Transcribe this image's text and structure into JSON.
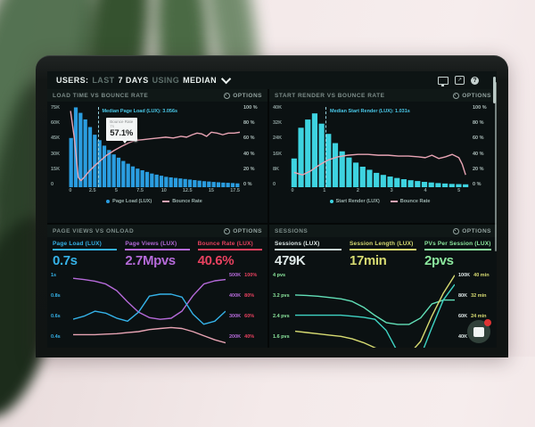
{
  "topbar": {
    "title_prefix": "USERS:",
    "range_label": "LAST",
    "range_value": "7 DAYS",
    "using_label": "USING",
    "agg_value": "MEDIAN",
    "icons": [
      "monitor-icon",
      "share-icon",
      "help-icon"
    ],
    "share_glyph": "↗",
    "help_glyph": "?"
  },
  "panels": {
    "load": {
      "title": "LOAD TIME VS BOUNCE RATE",
      "options_label": "OPTIONS",
      "median_label": "Median Page Load (LUX): 3.056s",
      "tooltip": {
        "title": "Bounce Rate",
        "x": "7s",
        "value": "57.1%"
      },
      "y_left": [
        "75K",
        "60K",
        "45K",
        "30K",
        "15K",
        "0"
      ],
      "y_right": [
        "100 %",
        "80 %",
        "60 %",
        "40 %",
        "20 %",
        "0 %"
      ],
      "x_ticks": [
        "0",
        "2.5",
        "5",
        "7.5",
        "10",
        "12.5",
        "15",
        "17.5"
      ],
      "legend": [
        "Page Load (LUX)",
        "Bounce Rate"
      ]
    },
    "render": {
      "title": "START RENDER VS BOUNCE RATE",
      "options_label": "OPTIONS",
      "median_label": "Median Start Render (LUX): 1.031s",
      "y_left": [
        "40K",
        "32K",
        "24K",
        "16K",
        "8K",
        "0"
      ],
      "y_right": [
        "100 %",
        "80 %",
        "60 %",
        "40 %",
        "20 %",
        "0 %"
      ],
      "x_ticks": [
        "0",
        "1",
        "2",
        "3",
        "4",
        "5"
      ],
      "legend": [
        "Start Render (LUX)",
        "Bounce Rate"
      ]
    },
    "pageviews": {
      "title": "PAGE VIEWS VS ONLOAD",
      "options_label": "OPTIONS",
      "metrics": [
        {
          "label": "Page Load (LUX)",
          "value": "0.7s",
          "color": "#35b2e8"
        },
        {
          "label": "Page Views (LUX)",
          "value": "2.7Mpvs",
          "color": "#b56ad9"
        },
        {
          "label": "Bounce Rate (LUX)",
          "value": "40.6%",
          "color": "#e8415f"
        }
      ],
      "y_left": [
        "1s",
        "0.8s",
        "0.6s",
        "0.4s"
      ],
      "y_right_k": [
        "500K",
        "400K",
        "300K",
        "200K"
      ],
      "y_right_pct": [
        "100%",
        "80%",
        "60%",
        "40%"
      ]
    },
    "sessions": {
      "title": "SESSIONS",
      "options_label": "OPTIONS",
      "metrics": [
        {
          "label": "Sessions (LUX)",
          "value": "479K",
          "color": "#dfe9e8"
        },
        {
          "label": "Session Length (LUX)",
          "value": "17min",
          "color": "#d8dc72"
        },
        {
          "label": "PVs Per Session (LUX)",
          "value": "2pvs",
          "color": "#8ce89e"
        }
      ],
      "y_left": [
        "4 pvs",
        "3.2 pvs",
        "2.4 pvs",
        "1.6 pvs"
      ],
      "y_right_k": [
        "100K",
        "80K",
        "60K",
        "40K"
      ],
      "y_right_min": [
        "40 min",
        "32 min",
        "24 min",
        ""
      ]
    }
  },
  "chart_data": [
    {
      "type": "bar",
      "title": "LOAD TIME VS BOUNCE RATE",
      "xlabel_unit": "seconds",
      "x_range": [
        0,
        18
      ],
      "bars": {
        "name": "Page Load (LUX)",
        "color": "#2a9de0",
        "unit": "K sessions",
        "max": 75,
        "bin_width": 0.5,
        "values": [
          45,
          73,
          68,
          62,
          55,
          48,
          43,
          38,
          34,
          30,
          27,
          24,
          21.5,
          19,
          17,
          15.5,
          14,
          12.5,
          11.5,
          10.5,
          9.5,
          9,
          8.5,
          8,
          7.5,
          7,
          6.5,
          6,
          5.5,
          5.2,
          4.8,
          4.5,
          4.2,
          4,
          3.8,
          3.5
        ]
      },
      "median": {
        "label": "Median Page Load (LUX): 3.056s",
        "value_s": 3.056
      },
      "lines": [
        {
          "name": "Bounce Rate",
          "color": "#e8a4b4",
          "unit": "%",
          "range": [
            0,
            100
          ],
          "x": [
            0.2,
            0.6,
            1.0,
            1.3,
            1.7,
            2.2,
            2.8,
            3.4,
            4.0,
            4.8,
            5.6,
            6.3,
            7.0,
            7.8,
            8.6,
            9.4,
            10.2,
            11.0,
            11.8,
            12.4,
            13.0,
            13.5,
            14.0,
            14.5,
            15.0,
            15.6,
            16.2,
            16.8,
            17.4,
            18.0
          ],
          "values": [
            93,
            60,
            12,
            8,
            13,
            20,
            27,
            33,
            39,
            45,
            50,
            54,
            57.1,
            58,
            59,
            60,
            61,
            60,
            62,
            61,
            64,
            66,
            65,
            62,
            67,
            66,
            64,
            66,
            66,
            67
          ]
        }
      ]
    },
    {
      "type": "bar",
      "title": "START RENDER VS BOUNCE RATE",
      "xlabel_unit": "seconds",
      "x_range": [
        0,
        5.3
      ],
      "bars": {
        "name": "Start Render (LUX)",
        "color": "#3ed3e0",
        "unit": "K sessions",
        "max": 40,
        "bin_width": 0.2,
        "values": [
          14,
          29,
          33,
          36,
          31,
          26,
          21.5,
          17.5,
          14.5,
          12,
          10,
          8.5,
          7,
          6,
          5.2,
          4.5,
          3.9,
          3.4,
          3,
          2.6,
          2.3,
          2,
          1.8,
          1.6,
          1.5,
          1.4
        ]
      },
      "median": {
        "label": "Median Start Render (LUX): 1.031s",
        "value_s": 1.031
      },
      "lines": [
        {
          "name": "Bounce Rate",
          "color": "#e8a4b4",
          "unit": "%",
          "range": [
            0,
            100
          ],
          "x": [
            0.1,
            0.35,
            0.6,
            0.85,
            1.1,
            1.4,
            1.7,
            2.0,
            2.3,
            2.6,
            2.9,
            3.2,
            3.5,
            3.8,
            4.0,
            4.2,
            4.4,
            4.6,
            4.8,
            5.0,
            5.1,
            5.2
          ],
          "values": [
            18,
            15,
            20,
            27,
            33,
            37,
            39,
            40,
            40,
            39,
            39,
            38,
            38,
            37,
            36,
            39,
            35,
            37,
            40,
            36,
            28,
            15
          ]
        }
      ]
    },
    {
      "type": "line",
      "title": "PAGE VIEWS VS ONLOAD",
      "lines": [
        {
          "name": "Page Views (LUX)",
          "color": "#b56ad9",
          "unit": "K",
          "range": [
            85,
            520
          ],
          "values": [
            480,
            474,
            466,
            452,
            420,
            365,
            315,
            288,
            280,
            285,
            320,
            395,
            452,
            468,
            474
          ]
        },
        {
          "name": "Page Load (LUX)",
          "color": "#35b2e8",
          "unit": "s",
          "range": [
            0.15,
            1.04
          ],
          "values": [
            0.55,
            0.58,
            0.63,
            0.61,
            0.56,
            0.53,
            0.62,
            0.78,
            0.8,
            0.8,
            0.77,
            0.6,
            0.5,
            0.53,
            0.63
          ]
        },
        {
          "name": "Bounce Rate (LUX)",
          "color": "#e8a4b4",
          "unit": "%",
          "range": [
            17,
            104
          ],
          "values": [
            41,
            41,
            41,
            41.5,
            42,
            43,
            44,
            46,
            47,
            48,
            47,
            44,
            40,
            36,
            33
          ]
        }
      ]
    },
    {
      "type": "line",
      "title": "SESSIONS",
      "lines": [
        {
          "name": "PVs Per Session (LUX)",
          "color": "#62e0b8",
          "unit": "pvs",
          "range": [
            0.69,
            4.17
          ],
          "values": [
            3.2,
            3.18,
            3.15,
            3.1,
            3.05,
            2.95,
            2.72,
            2.4,
            2.12,
            2.05,
            2.05,
            2.3,
            2.85,
            3.0,
            3.0
          ]
        },
        {
          "name": "Sessions (LUX)",
          "color": "#3fd4c4",
          "unit": "K",
          "range": [
            17,
            104
          ],
          "values": [
            60,
            60,
            60,
            60,
            60,
            59,
            58,
            56,
            45,
            24,
            12,
            20,
            48,
            75,
            90
          ]
        },
        {
          "name": "Session Length (LUX)",
          "color": "#d8dc72",
          "unit": "min",
          "range": [
            7,
            42
          ],
          "values": [
            18,
            17.5,
            17,
            16.5,
            16,
            15,
            13.5,
            11.5,
            9.5,
            8,
            9,
            14,
            24,
            33,
            40
          ]
        }
      ]
    }
  ],
  "colors": {
    "screen_bg": "#0a0e10",
    "panel_bg": "#0b1112",
    "bars_blue": "#2a9de0",
    "bars_cyan": "#3ed3e0",
    "bounce_pink": "#e8a4b4",
    "accent_cyan": "#35b2e8",
    "accent_purple": "#b56ad9",
    "accent_red": "#e8415f",
    "accent_yellow": "#d8dc72",
    "accent_green": "#8ce89e",
    "chat_badge_red": "#e03434"
  }
}
